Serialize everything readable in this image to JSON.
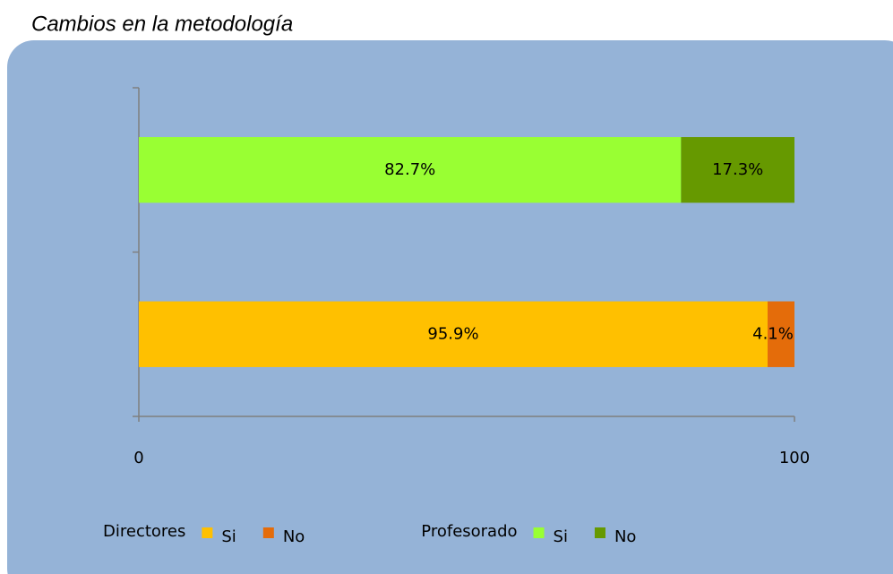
{
  "chart_data": {
    "type": "bar",
    "orientation": "horizontal",
    "stacked": true,
    "title": "Cambios en la metodología",
    "xlim": [
      0,
      100
    ],
    "xticks": [
      0,
      100
    ],
    "bars": [
      {
        "name": "Profesorado",
        "segments": [
          {
            "name": "Si",
            "color": "#99ff33",
            "value": 82.7,
            "value_label": "82.7%"
          },
          {
            "name": "No",
            "color": "#669900",
            "value": 17.3,
            "value_label": "17.3%"
          }
        ]
      },
      {
        "name": "Directores",
        "segments": [
          {
            "name": "Si",
            "color": "#ffc000",
            "value": 95.9,
            "value_label": "95.9%"
          },
          {
            "name": "No",
            "color": "#e46c0a",
            "value": 4.1,
            "value_label": "4.1%"
          }
        ]
      }
    ]
  }
}
